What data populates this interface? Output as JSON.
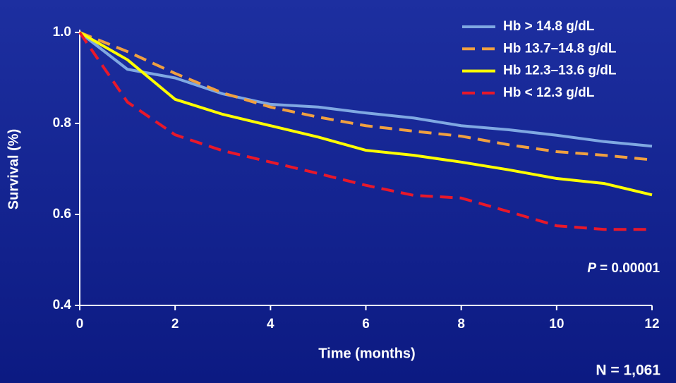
{
  "chart_data": {
    "type": "line",
    "x_label": "Time (months)",
    "y_label": "Survival (%)",
    "x": [
      0,
      1,
      2,
      3,
      4,
      5,
      6,
      7,
      8,
      9,
      10,
      11,
      12
    ],
    "series": [
      {
        "name": "Hb > 14.8 g/dL",
        "color": "#7fa8e2",
        "dash": false,
        "values": [
          1.0,
          0.919,
          0.9,
          0.865,
          0.842,
          0.836,
          0.823,
          0.812,
          0.795,
          0.786,
          0.774,
          0.76,
          0.75
        ]
      },
      {
        "name": "Hb 13.7–14.8 g/dL",
        "color": "#f0a040",
        "dash": true,
        "values": [
          1.0,
          0.958,
          0.91,
          0.867,
          0.836,
          0.814,
          0.795,
          0.783,
          0.772,
          0.753,
          0.738,
          0.73,
          0.72
        ]
      },
      {
        "name": "Hb 12.3–13.6 g/dL",
        "color": "#ffff00",
        "dash": false,
        "values": [
          1.0,
          0.94,
          0.853,
          0.82,
          0.795,
          0.77,
          0.741,
          0.73,
          0.715,
          0.698,
          0.679,
          0.668,
          0.643
        ]
      },
      {
        "name": "Hb < 12.3 g/dL",
        "color": "#e8182a",
        "dash": true,
        "values": [
          1.0,
          0.847,
          0.775,
          0.74,
          0.715,
          0.69,
          0.664,
          0.642,
          0.636,
          0.606,
          0.575,
          0.567,
          0.567
        ]
      }
    ],
    "xlim": [
      0,
      12
    ],
    "xticks": [
      0,
      2,
      4,
      6,
      8,
      10,
      12
    ],
    "ylim": [
      0.4,
      1.0
    ],
    "yticks": [
      0.4,
      0.6,
      0.8,
      {
        "value": 1,
        "label": "1.0"
      }
    ],
    "grid": false,
    "legend": "top-right",
    "p_value": {
      "symbol": "P",
      "text": "= 0.00001"
    },
    "note": "N = 1,061"
  }
}
